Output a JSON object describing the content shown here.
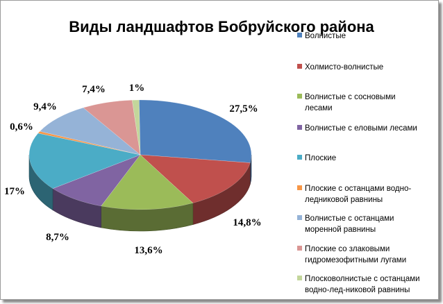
{
  "chart_data": {
    "type": "pie",
    "title": "Виды ландшафтов Бобруйского района",
    "legend_position": "right",
    "slices": [
      {
        "name": "Волнистые",
        "legend_lines": [
          "Волнистые"
        ],
        "value": 27.5,
        "label": "27,5%",
        "color": "#4F81BD"
      },
      {
        "name": "Холмисто-волнистые",
        "legend_lines": [
          "Холмисто-волнистые"
        ],
        "value": 14.8,
        "label": "14,8%",
        "color": "#C0504D"
      },
      {
        "name": "Волнистые с сосновыми лесами",
        "legend_lines": [
          "Волнистые с сосновыми",
          "лесами"
        ],
        "value": 13.6,
        "label": "13,6%",
        "color": "#9BBB59"
      },
      {
        "name": "Волнистые с еловыми лесами",
        "legend_lines": [
          "Волнистые с еловыми лесами"
        ],
        "value": 8.7,
        "label": "8,7%",
        "color": "#8064A2"
      },
      {
        "name": "Плоские",
        "legend_lines": [
          "Плоские"
        ],
        "value": 17,
        "label": "17%",
        "color": "#4BACC6"
      },
      {
        "name": "Плоские с останцами водно-ледниковой равнины",
        "legend_lines": [
          "Плоские с останцами водно-",
          "ледниковой равнины"
        ],
        "value": 0.6,
        "label": "0,6%",
        "color": "#F79646"
      },
      {
        "name": "Волнистые с останцами моренной равнины",
        "legend_lines": [
          "Волнистые с останцами",
          "моренной равнины"
        ],
        "value": 9.4,
        "label": "9,4%",
        "color": "#95B3D7"
      },
      {
        "name": "Плоские со злаковыми гидромезофитными лугами",
        "legend_lines": [
          "Плоские со злаковыми",
          "гидромезофитными лугами"
        ],
        "value": 7.4,
        "label": "7,4%",
        "color": "#DA9694"
      },
      {
        "name": "Плосковолнистые с останцами водно-лед-никовой равнины",
        "legend_lines": [
          "Плосковолнистые с останцами",
          "водно-лед-никовой равнины"
        ],
        "value": 1,
        "label": "1%",
        "color": "#C3D69B"
      }
    ]
  }
}
